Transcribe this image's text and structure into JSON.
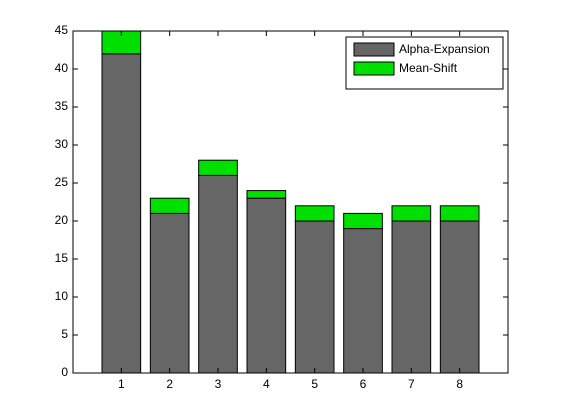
{
  "chart_data": {
    "type": "stacked-bar",
    "x": [
      1,
      2,
      3,
      4,
      5,
      6,
      7,
      8
    ],
    "series": [
      {
        "name": "Alpha-Expansion",
        "color": "#666666",
        "values": [
          42,
          21,
          26,
          23,
          20,
          19,
          20,
          20
        ]
      },
      {
        "name": "Mean-Shift",
        "color": "#00e000",
        "values": [
          3,
          2,
          2,
          1,
          2,
          2,
          2,
          2
        ]
      }
    ],
    "xlim": [
      0,
      9
    ],
    "xticks": [
      1,
      2,
      3,
      4,
      5,
      6,
      7,
      8
    ],
    "ylim": [
      0,
      45
    ],
    "yticks": [
      0,
      5,
      10,
      15,
      20,
      25,
      30,
      35,
      40,
      45
    ],
    "bar_width": 0.8,
    "legend": "northeast"
  }
}
